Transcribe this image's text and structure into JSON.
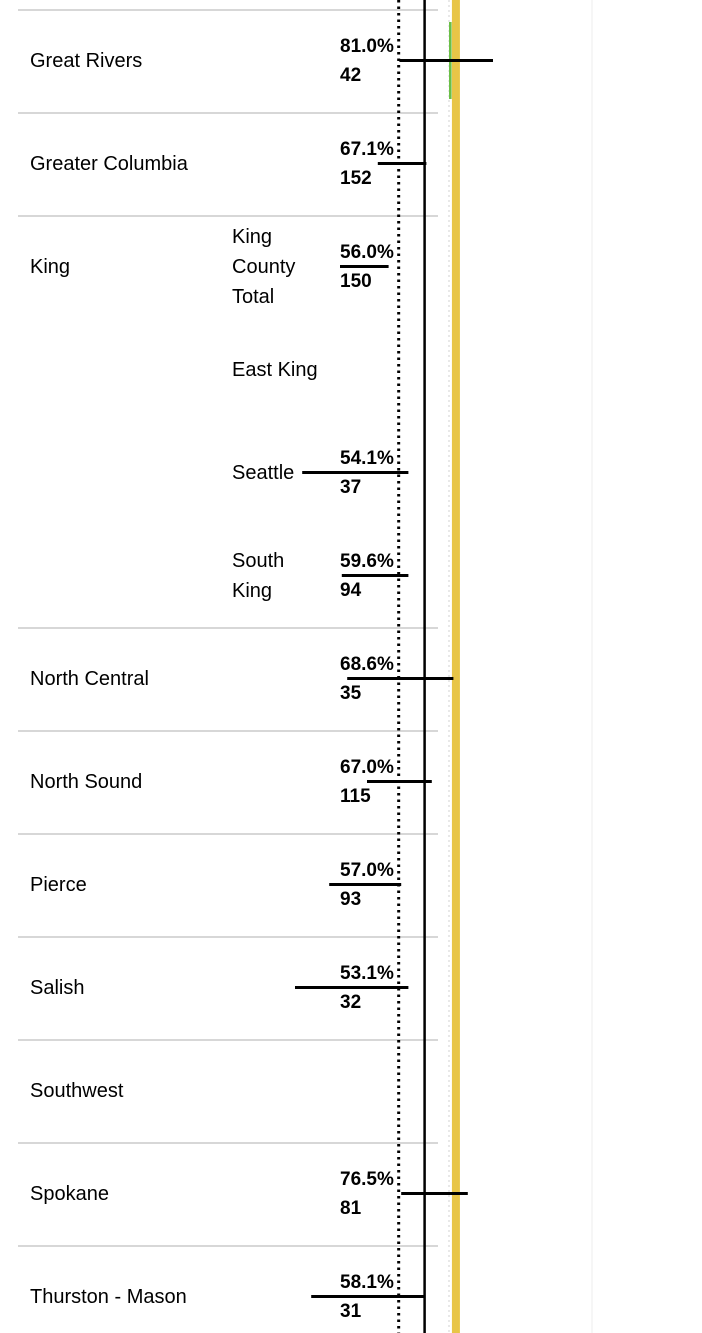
{
  "chart_data": {
    "type": "bar",
    "orientation": "horizontal",
    "title": "",
    "xlabel": "",
    "ylabel": "",
    "xlim": [
      0,
      100
    ],
    "grid": true,
    "reference_lines": [
      {
        "style": "dotted",
        "color": "#000000",
        "value": 66.3
      },
      {
        "style": "solid",
        "color": "#000000",
        "value": 73.5
      },
      {
        "style": "solid",
        "color": "#e8c547",
        "value": 82.2
      }
    ],
    "colors": {
      "above": "#6abf47",
      "similar": "#abadad",
      "total": "#444444"
    },
    "rows": [
      {
        "region": "Great Rivers",
        "sub": "",
        "pct_label": "81.0%",
        "n_label": "42",
        "value": 81.0,
        "ci_low": 66.5,
        "ci_high": 92.5,
        "status": "above",
        "sep": true
      },
      {
        "region": "Greater Columbia",
        "sub": "",
        "pct_label": "67.1%",
        "n_label": "152",
        "value": 67.1,
        "ci_low": 60.5,
        "ci_high": 74.0,
        "status": "similar",
        "sep": true
      },
      {
        "region": "King",
        "sub": "King County Total",
        "pct_label": "56.0%",
        "n_label": "150",
        "value": 56.0,
        "ci_low": 50.0,
        "ci_high": 63.5,
        "status": "total",
        "sep": true
      },
      {
        "region": "",
        "sub": "East King",
        "pct_label": "",
        "n_label": "",
        "value": null,
        "ci_low": null,
        "ci_high": null,
        "status": "none",
        "sep": false
      },
      {
        "region": "",
        "sub": "Seattle",
        "pct_label": "54.1%",
        "n_label": "37",
        "value": 54.1,
        "ci_low": 39.5,
        "ci_high": 69.0,
        "status": "similar",
        "sep": false
      },
      {
        "region": "",
        "sub": "South King",
        "pct_label": "59.6%",
        "n_label": "94",
        "value": 59.6,
        "ci_low": 50.5,
        "ci_high": 69.0,
        "status": "similar",
        "sep": false
      },
      {
        "region": "North Central",
        "sub": "",
        "pct_label": "68.6%",
        "n_label": "35",
        "value": 68.6,
        "ci_low": 52.0,
        "ci_high": 81.5,
        "status": "similar",
        "sep": true
      },
      {
        "region": "North Sound",
        "sub": "",
        "pct_label": "67.0%",
        "n_label": "115",
        "value": 67.0,
        "ci_low": 57.5,
        "ci_high": 75.5,
        "status": "similar",
        "sep": true
      },
      {
        "region": "Pierce",
        "sub": "",
        "pct_label": "57.0%",
        "n_label": "93",
        "value": 57.0,
        "ci_low": 47.0,
        "ci_high": 67.0,
        "status": "similar",
        "sep": true
      },
      {
        "region": "Salish",
        "sub": "",
        "pct_label": "53.1%",
        "n_label": "32",
        "value": 53.1,
        "ci_low": 37.5,
        "ci_high": 69.0,
        "status": "similar",
        "sep": true
      },
      {
        "region": "Southwest",
        "sub": "",
        "pct_label": "",
        "n_label": "",
        "value": null,
        "ci_low": null,
        "ci_high": null,
        "status": "none",
        "sep": true
      },
      {
        "region": "Spokane",
        "sub": "",
        "pct_label": "76.5%",
        "n_label": "81",
        "value": 76.5,
        "ci_low": 67.0,
        "ci_high": 85.5,
        "status": "above",
        "sep": true
      },
      {
        "region": "Thurston - Mason",
        "sub": "",
        "pct_label": "58.1%",
        "n_label": "31",
        "value": 58.1,
        "ci_low": 42.0,
        "ci_high": 73.5,
        "status": "similar",
        "sep": true
      }
    ]
  }
}
